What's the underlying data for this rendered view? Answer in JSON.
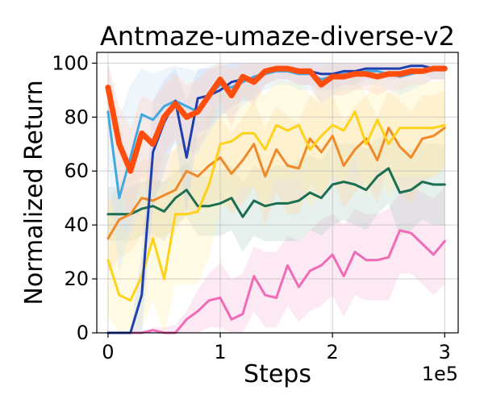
{
  "chart_data": {
    "type": "line",
    "title": "Antmaze-umaze-diverse-v2",
    "xlabel": "Steps",
    "ylabel": "Normalized Return",
    "x_offset_label": "1e5",
    "xlim": [
      -0.1,
      3.12
    ],
    "ylim": [
      0,
      104
    ],
    "x_ticks": [
      0,
      1,
      2,
      3
    ],
    "x_tick_labels": [
      "0",
      "1",
      "2",
      "3"
    ],
    "y_ticks": [
      0,
      20,
      40,
      60,
      80,
      100
    ],
    "y_tick_labels": [
      "0",
      "20",
      "40",
      "60",
      "80",
      "100"
    ],
    "grid": true,
    "x": [
      0,
      0.1,
      0.2,
      0.3,
      0.4,
      0.5,
      0.6,
      0.7,
      0.8,
      0.9,
      1.0,
      1.1,
      1.2,
      1.3,
      1.4,
      1.5,
      1.6,
      1.7,
      1.8,
      1.9,
      2.0,
      2.1,
      2.2,
      2.3,
      2.4,
      2.5,
      2.6,
      2.7,
      2.8,
      2.9,
      3.0
    ],
    "series": [
      {
        "name": "series-pink",
        "color": "#f06bb7",
        "band_color": "#f7c1df",
        "width": 3,
        "values": [
          0,
          0,
          0,
          0,
          1,
          0,
          0,
          5,
          8,
          12,
          13,
          5,
          7,
          21,
          14,
          13,
          25,
          17,
          23,
          25,
          29,
          21,
          30,
          27,
          27,
          28,
          38,
          37,
          33,
          29,
          34
        ],
        "band": [
          0,
          0,
          0,
          0,
          2,
          2,
          3,
          8,
          16,
          22,
          26,
          20,
          22,
          32,
          30,
          30,
          36,
          34,
          38,
          42,
          44,
          40,
          46,
          44,
          44,
          46,
          52,
          54,
          52,
          50,
          54
        ],
        "band_lower": [
          0,
          0,
          0,
          0,
          0,
          0,
          0,
          0,
          0,
          2,
          2,
          0,
          0,
          8,
          2,
          2,
          10,
          4,
          8,
          10,
          14,
          6,
          14,
          12,
          12,
          12,
          22,
          22,
          18,
          14,
          18
        ]
      },
      {
        "name": "series-dark-green",
        "color": "#1b6e4f",
        "band_color": "#b8d4c8",
        "width": 3,
        "values": [
          44,
          44,
          44,
          46,
          47,
          45,
          50,
          53,
          47,
          47,
          48,
          50,
          43,
          49,
          47,
          48,
          48,
          49,
          52,
          50,
          55,
          56,
          55,
          53,
          58,
          61,
          52,
          53,
          56,
          55,
          55
        ],
        "band": [
          54,
          54,
          54,
          56,
          57,
          56,
          60,
          63,
          58,
          58,
          60,
          62,
          56,
          62,
          60,
          62,
          62,
          64,
          66,
          64,
          70,
          70,
          70,
          68,
          72,
          74,
          68,
          68,
          70,
          70,
          70
        ],
        "band_lower": [
          34,
          34,
          34,
          36,
          37,
          34,
          40,
          43,
          36,
          36,
          36,
          38,
          30,
          36,
          34,
          34,
          34,
          34,
          38,
          36,
          40,
          42,
          40,
          38,
          44,
          48,
          36,
          38,
          42,
          40,
          40
        ]
      },
      {
        "name": "series-orange",
        "color": "#f08a28",
        "band_color": "#f8d6a8",
        "width": 3,
        "values": [
          35,
          42,
          44,
          50,
          49,
          51,
          53,
          60,
          58,
          62,
          65,
          59,
          64,
          70,
          58,
          68,
          62,
          61,
          72,
          67,
          73,
          62,
          68,
          72,
          64,
          76,
          69,
          65,
          72,
          73,
          76
        ],
        "band": [
          48,
          56,
          58,
          64,
          64,
          66,
          68,
          74,
          72,
          76,
          80,
          74,
          80,
          86,
          76,
          84,
          80,
          78,
          88,
          84,
          88,
          78,
          84,
          88,
          80,
          90,
          86,
          82,
          88,
          88,
          90
        ],
        "band_lower": [
          22,
          28,
          30,
          36,
          34,
          36,
          38,
          46,
          44,
          48,
          50,
          44,
          48,
          54,
          40,
          52,
          44,
          44,
          56,
          50,
          58,
          46,
          52,
          56,
          48,
          62,
          52,
          48,
          56,
          58,
          62
        ]
      },
      {
        "name": "series-yellow",
        "color": "#ffd21a",
        "band_color": "#fff0b0",
        "width": 3,
        "values": [
          27,
          14,
          12,
          21,
          35,
          20,
          44,
          44,
          45,
          55,
          70,
          71,
          74,
          74,
          68,
          77,
          75,
          77,
          68,
          73,
          77,
          75,
          82,
          70,
          79,
          70,
          76,
          76,
          76,
          76,
          77
        ],
        "band": [
          50,
          40,
          36,
          46,
          60,
          48,
          70,
          72,
          74,
          82,
          90,
          90,
          92,
          92,
          88,
          94,
          93,
          94,
          88,
          92,
          94,
          92,
          96,
          88,
          95,
          88,
          93,
          93,
          93,
          93,
          94
        ],
        "band_lower": [
          6,
          0,
          0,
          2,
          12,
          0,
          18,
          18,
          18,
          28,
          46,
          48,
          54,
          54,
          46,
          58,
          56,
          58,
          46,
          52,
          58,
          56,
          66,
          50,
          62,
          50,
          58,
          58,
          58,
          58,
          60
        ]
      },
      {
        "name": "series-light-blue",
        "color": "#3fa9e0",
        "band_color": "#cfe6f5",
        "width": 3,
        "values": [
          82,
          50,
          65,
          81,
          79,
          84,
          86,
          84,
          82,
          88,
          92,
          91,
          93,
          95,
          96,
          97,
          97,
          96,
          96,
          94,
          95,
          96,
          96,
          97,
          97,
          96,
          95,
          96,
          97,
          98,
          98
        ],
        "band": [
          100,
          80,
          92,
          98,
          96,
          98,
          99,
          98,
          97,
          99,
          100,
          100,
          100,
          100,
          100,
          100,
          100,
          100,
          100,
          100,
          100,
          100,
          100,
          100,
          100,
          100,
          100,
          100,
          100,
          100,
          100
        ],
        "band_lower": [
          62,
          22,
          38,
          60,
          58,
          66,
          70,
          68,
          66,
          74,
          82,
          80,
          84,
          88,
          90,
          92,
          92,
          90,
          90,
          86,
          88,
          90,
          90,
          92,
          92,
          90,
          88,
          90,
          92,
          94,
          94
        ]
      },
      {
        "name": "series-dark-blue",
        "color": "#1e3fae",
        "band_color": "#c6d0ee",
        "width": 3,
        "values": [
          0,
          0,
          0,
          14,
          67,
          78,
          86,
          65,
          87,
          88,
          90,
          93,
          94,
          94,
          97,
          98,
          98,
          97,
          97,
          96,
          96,
          97,
          97,
          98,
          98,
          98,
          98,
          99,
          99,
          98,
          98
        ],
        "band": [
          0,
          0,
          0,
          30,
          86,
          94,
          98,
          86,
          98,
          98,
          99,
          100,
          100,
          100,
          100,
          100,
          100,
          100,
          100,
          100,
          100,
          100,
          100,
          100,
          100,
          100,
          100,
          100,
          100,
          100,
          100
        ],
        "band_lower": [
          0,
          0,
          0,
          0,
          46,
          60,
          72,
          44,
          74,
          76,
          80,
          84,
          86,
          86,
          92,
          94,
          94,
          92,
          92,
          90,
          90,
          92,
          92,
          94,
          94,
          94,
          94,
          96,
          96,
          94,
          94
        ]
      },
      {
        "name": "series-red-orange",
        "color": "#ff4d0d",
        "band_color": "#ffd2bf",
        "width": 7,
        "values": [
          91,
          70,
          60,
          74,
          70,
          80,
          85,
          80,
          82,
          88,
          94,
          88,
          95,
          93,
          97,
          98,
          98,
          97,
          97,
          92,
          95,
          95,
          96,
          96,
          95,
          96,
          96,
          97,
          97,
          98,
          98
        ],
        "band": [
          100,
          84,
          76,
          88,
          86,
          92,
          96,
          92,
          94,
          98,
          100,
          98,
          100,
          100,
          100,
          100,
          100,
          100,
          100,
          99,
          100,
          100,
          100,
          100,
          100,
          100,
          100,
          100,
          100,
          100,
          100
        ],
        "band_lower": [
          80,
          54,
          42,
          58,
          52,
          66,
          72,
          66,
          68,
          76,
          86,
          76,
          88,
          84,
          92,
          94,
          94,
          92,
          92,
          84,
          88,
          88,
          90,
          90,
          88,
          90,
          90,
          92,
          92,
          94,
          94
        ]
      }
    ]
  }
}
